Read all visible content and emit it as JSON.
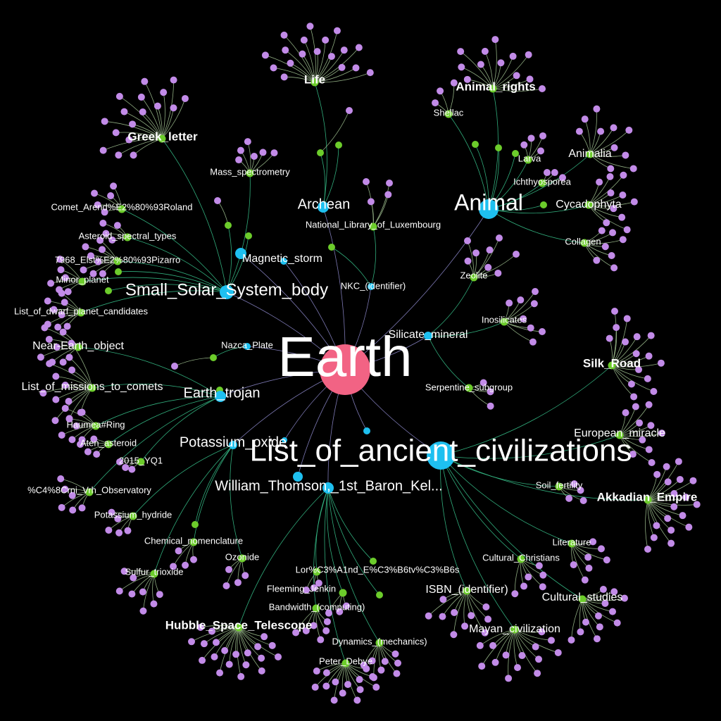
{
  "graph": {
    "background": "#000000",
    "colors": {
      "root": "#f26384",
      "hub": "#1ec0f0",
      "category": "#6ccc2b",
      "leaf": "#c28be8",
      "edge_root": "#8b86c8",
      "edge_hub": "#36c08a",
      "edge_leaf": "#a0c090"
    },
    "root": {
      "id": "earth",
      "label": "Earth"
    },
    "hubs": [
      {
        "id": "ancient",
        "label": "List_of_ancient_civilizations"
      },
      {
        "id": "animal",
        "label": "Animal"
      },
      {
        "id": "archean",
        "label": "Archean"
      },
      {
        "id": "sssb",
        "label": "Small_Solar_System_body"
      },
      {
        "id": "trojan",
        "label": "Earth_trojan"
      },
      {
        "id": "kelvin",
        "label": "William_Thomson,_1st_Baron_Kel..."
      },
      {
        "id": "potassium",
        "label": "Potassium_oxide"
      },
      {
        "id": "magstorm",
        "label": "Magnetic_storm"
      },
      {
        "id": "silicate",
        "label": "Silicate_mineral"
      },
      {
        "id": "nkc",
        "label": "NKC_(identifier)"
      },
      {
        "id": "nazca",
        "label": "Nazca_Plate"
      }
    ],
    "categories": [
      {
        "id": "life",
        "label": "Life",
        "bold": true
      },
      {
        "id": "greek",
        "label": "Greek_letter",
        "bold": true
      },
      {
        "id": "animal_rights",
        "label": "Animal_rights",
        "bold": true
      },
      {
        "id": "shellac",
        "label": "Shellac"
      },
      {
        "id": "animalia",
        "label": "Animalia"
      },
      {
        "id": "larva",
        "label": "Larva"
      },
      {
        "id": "ichthy",
        "label": "Ichthyosporea"
      },
      {
        "id": "cycado",
        "label": "Cycadophyta"
      },
      {
        "id": "collagen",
        "label": "Collagen"
      },
      {
        "id": "massspec",
        "label": "Mass_spectrometry"
      },
      {
        "id": "comet",
        "label": "Comet_Arend%E2%80%93Roland"
      },
      {
        "id": "asteroid_types",
        "label": "Asteroid_spectral_types"
      },
      {
        "id": "elst",
        "label": "7968_Elst%E2%80%93Pizarro"
      },
      {
        "id": "minor",
        "label": "Minor_planet"
      },
      {
        "id": "dwarf",
        "label": "List_of_dwarf_planet_candidates"
      },
      {
        "id": "neo",
        "label": "Near-Earth_object"
      },
      {
        "id": "missions",
        "label": "List_of_missions_to_comets"
      },
      {
        "id": "haumea",
        "label": "Haumea#Ring"
      },
      {
        "id": "aten",
        "label": "Aten_asteroid"
      },
      {
        "id": "yq1",
        "label": "2015_YQ1"
      },
      {
        "id": "observatory",
        "label": "%C4%8Crni_Vrh_Observatory"
      },
      {
        "id": "khydride",
        "label": "Potassium_hydride"
      },
      {
        "id": "chemnom",
        "label": "Chemical_nomenclature"
      },
      {
        "id": "ozonide",
        "label": "Ozonide"
      },
      {
        "id": "sulfur",
        "label": "Sulfur_trioxide"
      },
      {
        "id": "hubble",
        "label": "Hubble_Space_Telescope",
        "bold": true
      },
      {
        "id": "national_lib",
        "label": "National_Library_of_Luxembourg"
      },
      {
        "id": "zeolite",
        "label": "Zeolite"
      },
      {
        "id": "inosilicates",
        "label": "Inosilicates"
      },
      {
        "id": "serpentine",
        "label": "Serpentine_subgroup"
      },
      {
        "id": "silkroad",
        "label": "Silk_Road",
        "bold": true
      },
      {
        "id": "euromiracle",
        "label": "European_miracle"
      },
      {
        "id": "akkadian",
        "label": "Akkadian_Empire"
      },
      {
        "id": "soil",
        "label": "Soil_fertility"
      },
      {
        "id": "literature",
        "label": "Literature"
      },
      {
        "id": "culturalchr",
        "label": "Cultural_Christians"
      },
      {
        "id": "culturalstud",
        "label": "Cultural_studies"
      },
      {
        "id": "isbn",
        "label": "ISBN_(identifier)"
      },
      {
        "id": "mayan",
        "label": "Mayan_civilization"
      },
      {
        "id": "lorand",
        "label": "Lor%C3%A1nd_E%C3%B6tv%C3%B6s"
      },
      {
        "id": "fleeming",
        "label": "Fleeming_Jenkin"
      },
      {
        "id": "bandwidth",
        "label": "Bandwidth_(computing)"
      },
      {
        "id": "dynamics",
        "label": "Dynamics_(mechanics)"
      },
      {
        "id": "debye",
        "label": "Peter_Debye"
      }
    ]
  }
}
